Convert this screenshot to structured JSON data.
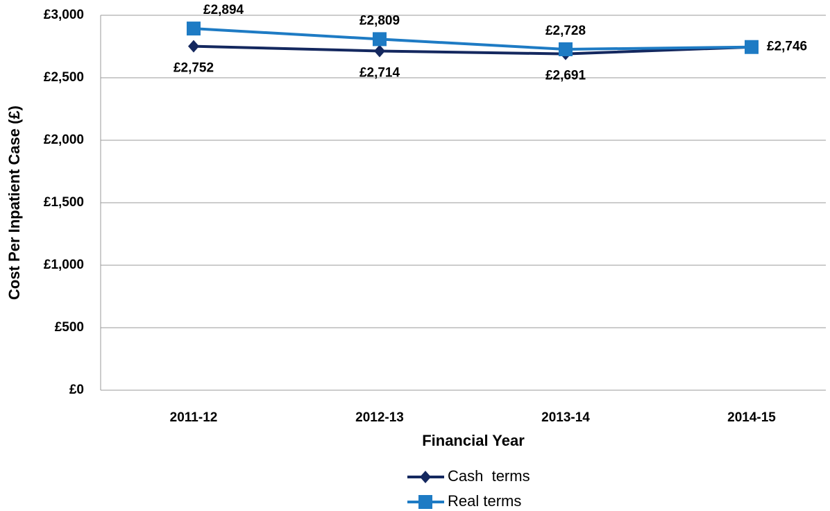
{
  "chart_data": {
    "type": "line",
    "x_label": "Financial Year",
    "y_label": "Cost Per Inpatient Case (£)",
    "categories": [
      "2011-12",
      "2012-13",
      "2013-14",
      "2014-15"
    ],
    "series": [
      {
        "name": "Cash  terms",
        "color": "#14285f",
        "marker": "diamond",
        "values": [
          2752,
          2714,
          2691,
          2746
        ],
        "value_labels": [
          "£2,752",
          "£2,714",
          "£2,691",
          null
        ]
      },
      {
        "name": "Real terms",
        "color": "#1e7bc4",
        "marker": "square",
        "values": [
          2894,
          2809,
          2728,
          2746
        ],
        "value_labels": [
          "£2,894",
          "£2,809",
          "£2,728",
          "£2,746"
        ]
      }
    ],
    "ylim": [
      0,
      3000
    ],
    "yticks": [
      {
        "value": 0,
        "label": "£0"
      },
      {
        "value": 500,
        "label": "£500"
      },
      {
        "value": 1000,
        "label": "£1,000"
      },
      {
        "value": 1500,
        "label": "£1,500"
      },
      {
        "value": 2000,
        "label": "£2,000"
      },
      {
        "value": 2500,
        "label": "£2,500"
      },
      {
        "value": 3000,
        "label": "£3,000"
      }
    ],
    "grid": true,
    "legend": "bottom"
  }
}
